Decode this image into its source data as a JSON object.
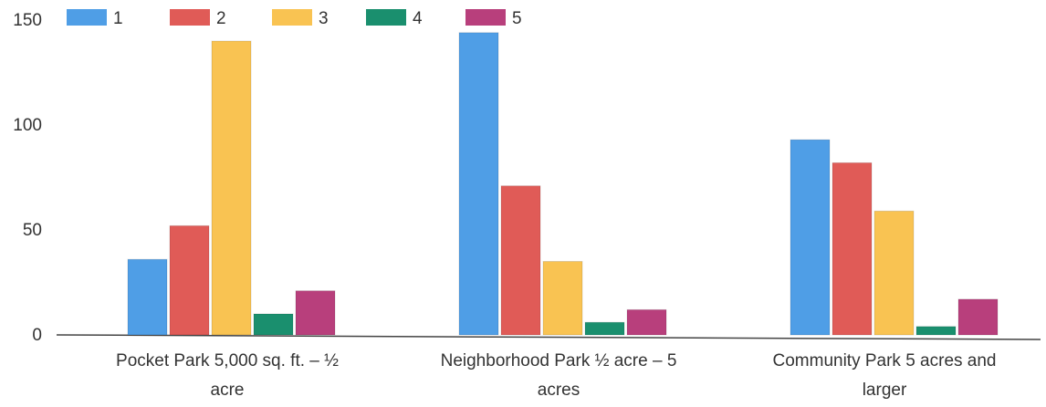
{
  "chart_data": {
    "type": "bar",
    "categories": [
      [
        "Pocket Park 5,000 sq. ft. – ½",
        "acre"
      ],
      [
        "Neighborhood Park ½ acre – 5",
        "acres"
      ],
      [
        "Community Park 5 acres and",
        "larger"
      ]
    ],
    "series": [
      {
        "name": "1",
        "color": "#4f9ee6",
        "values": [
          36,
          144,
          93
        ]
      },
      {
        "name": "2",
        "color": "#e05b57",
        "values": [
          52,
          71,
          82
        ]
      },
      {
        "name": "3",
        "color": "#f9c352",
        "values": [
          140,
          35,
          59
        ]
      },
      {
        "name": "4",
        "color": "#1a8f6e",
        "values": [
          10,
          6,
          4
        ]
      },
      {
        "name": "5",
        "color": "#b83f7c",
        "values": [
          21,
          12,
          17
        ]
      }
    ],
    "yticks": [
      0,
      50,
      100,
      150
    ],
    "ylim": [
      0,
      150
    ],
    "grid": false,
    "legend_position": "top-left"
  }
}
